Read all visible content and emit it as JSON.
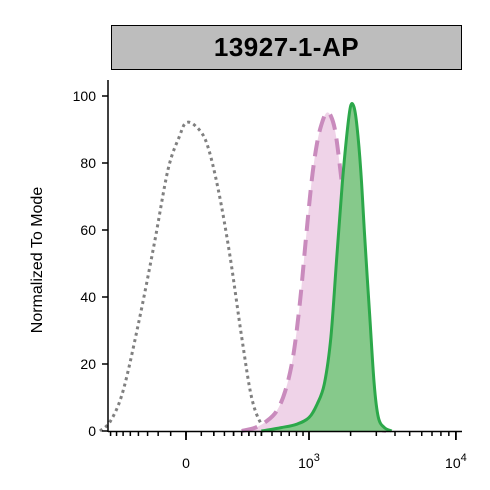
{
  "chart_data": {
    "type": "area",
    "title": "13927-1-AP",
    "ylabel": "Normalized To Mode",
    "xlabel": "",
    "x_scale": "biexponential",
    "ylim": [
      0,
      100
    ],
    "yticks": [
      0,
      20,
      40,
      60,
      80,
      100
    ],
    "xticks": [
      {
        "value": 0,
        "label": "0"
      },
      {
        "value": 1000,
        "label": "10",
        "sup": "3"
      },
      {
        "value": 10000,
        "label": "10",
        "sup": "4"
      }
    ],
    "grid": false,
    "series": [
      {
        "style": "dotted",
        "color": "#808080",
        "fill": "none",
        "points": [
          [
            -500,
            0
          ],
          [
            -400,
            3
          ],
          [
            -300,
            12
          ],
          [
            -200,
            32
          ],
          [
            -120,
            55
          ],
          [
            -60,
            78
          ],
          [
            -20,
            88
          ],
          [
            0,
            92
          ],
          [
            30,
            91
          ],
          [
            70,
            86
          ],
          [
            120,
            72
          ],
          [
            180,
            52
          ],
          [
            250,
            28
          ],
          [
            320,
            10
          ],
          [
            400,
            2
          ],
          [
            480,
            0
          ]
        ]
      },
      {
        "style": "dashed",
        "color": "#c98bbd",
        "fill": "#efd3e8",
        "points": [
          [
            250,
            0
          ],
          [
            350,
            1
          ],
          [
            450,
            3
          ],
          [
            550,
            6
          ],
          [
            650,
            12
          ],
          [
            750,
            22
          ],
          [
            850,
            38
          ],
          [
            950,
            58
          ],
          [
            1050,
            75
          ],
          [
            1150,
            86
          ],
          [
            1250,
            92
          ],
          [
            1350,
            95
          ],
          [
            1450,
            94
          ],
          [
            1550,
            90
          ],
          [
            1650,
            82
          ],
          [
            1800,
            68
          ],
          [
            1950,
            52
          ],
          [
            2100,
            35
          ],
          [
            2300,
            18
          ],
          [
            2600,
            6
          ],
          [
            3000,
            1
          ],
          [
            3500,
            0
          ]
        ]
      },
      {
        "style": "solid",
        "color": "#2ca84a",
        "fill": "#86c98b",
        "points": [
          [
            400,
            0
          ],
          [
            600,
            1
          ],
          [
            800,
            2
          ],
          [
            1000,
            4
          ],
          [
            1150,
            8
          ],
          [
            1300,
            14
          ],
          [
            1450,
            28
          ],
          [
            1600,
            52
          ],
          [
            1750,
            74
          ],
          [
            1900,
            90
          ],
          [
            2000,
            97
          ],
          [
            2100,
            97
          ],
          [
            2200,
            92
          ],
          [
            2350,
            78
          ],
          [
            2500,
            58
          ],
          [
            2700,
            35
          ],
          [
            2900,
            14
          ],
          [
            3100,
            4
          ],
          [
            3400,
            1
          ],
          [
            3800,
            0
          ]
        ]
      }
    ]
  }
}
